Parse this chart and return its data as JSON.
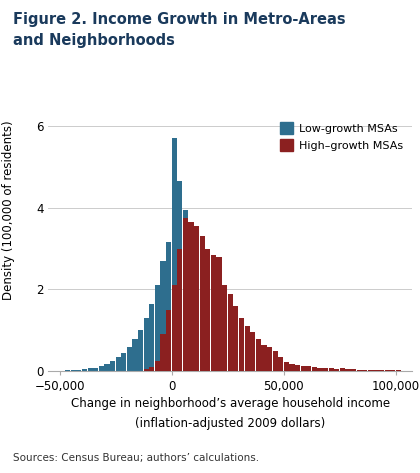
{
  "title_line1": "Figure 2. Income Growth in Metro-Areas",
  "title_line2": "and Neighborhoods",
  "ylabel": "Density (100,000 of residents)",
  "xlabel_line1": "Change in neighborhood’s average household income",
  "xlabel_line2": "(inflation-adjusted 2009 dollars)",
  "source": "Sources: Census Bureau; authors’ calculations.",
  "xlim": [
    -55000,
    107000
  ],
  "ylim": [
    0,
    6.3
  ],
  "yticks": [
    0,
    2,
    4,
    6
  ],
  "xticks": [
    -50000,
    0,
    50000,
    100000
  ],
  "xticklabels": [
    "−50,000",
    "0",
    "50,000",
    "100,000"
  ],
  "low_color": "#2E6E8E",
  "high_color": "#8B2020",
  "legend_low": "Low-growth MSAs",
  "legend_high": "High–growth MSAs",
  "bin_width": 2500,
  "low_growth_bars": [
    [
      -50000,
      0.01
    ],
    [
      -47500,
      0.02
    ],
    [
      -45000,
      0.03
    ],
    [
      -42500,
      0.04
    ],
    [
      -40000,
      0.05
    ],
    [
      -37500,
      0.07
    ],
    [
      -35000,
      0.09
    ],
    [
      -32500,
      0.13
    ],
    [
      -30000,
      0.18
    ],
    [
      -27500,
      0.25
    ],
    [
      -25000,
      0.35
    ],
    [
      -22500,
      0.45
    ],
    [
      -20000,
      0.6
    ],
    [
      -17500,
      0.78
    ],
    [
      -15000,
      1.0
    ],
    [
      -12500,
      1.3
    ],
    [
      -10000,
      1.65
    ],
    [
      -7500,
      2.1
    ],
    [
      -5000,
      2.7
    ],
    [
      -2500,
      3.15
    ],
    [
      0,
      5.7
    ],
    [
      2500,
      4.65
    ],
    [
      5000,
      3.95
    ],
    [
      7500,
      3.0
    ],
    [
      10000,
      1.3
    ],
    [
      12500,
      1.05
    ],
    [
      15000,
      0.75
    ],
    [
      17500,
      0.5
    ],
    [
      20000,
      0.32
    ],
    [
      22500,
      0.18
    ],
    [
      25000,
      0.1
    ],
    [
      27500,
      0.06
    ],
    [
      30000,
      0.04
    ],
    [
      32500,
      0.02
    ],
    [
      35000,
      0.01
    ]
  ],
  "high_growth_bars": [
    [
      -12500,
      0.05
    ],
    [
      -10000,
      0.1
    ],
    [
      -7500,
      0.25
    ],
    [
      -5000,
      0.9
    ],
    [
      -2500,
      1.5
    ],
    [
      0,
      2.1
    ],
    [
      2500,
      3.0
    ],
    [
      5000,
      3.75
    ],
    [
      7500,
      3.65
    ],
    [
      10000,
      3.55
    ],
    [
      12500,
      3.3
    ],
    [
      15000,
      3.0
    ],
    [
      17500,
      2.85
    ],
    [
      20000,
      2.8
    ],
    [
      22500,
      2.1
    ],
    [
      25000,
      1.9
    ],
    [
      27500,
      1.6
    ],
    [
      30000,
      1.3
    ],
    [
      32500,
      1.1
    ],
    [
      35000,
      0.95
    ],
    [
      37500,
      0.8
    ],
    [
      40000,
      0.65
    ],
    [
      42500,
      0.6
    ],
    [
      45000,
      0.5
    ],
    [
      47500,
      0.35
    ],
    [
      50000,
      0.22
    ],
    [
      52500,
      0.18
    ],
    [
      55000,
      0.15
    ],
    [
      57500,
      0.13
    ],
    [
      60000,
      0.12
    ],
    [
      62500,
      0.1
    ],
    [
      65000,
      0.09
    ],
    [
      67500,
      0.08
    ],
    [
      70000,
      0.07
    ],
    [
      72500,
      0.06
    ],
    [
      75000,
      0.08
    ],
    [
      77500,
      0.06
    ],
    [
      80000,
      0.05
    ],
    [
      82500,
      0.04
    ],
    [
      85000,
      0.04
    ],
    [
      87500,
      0.03
    ],
    [
      90000,
      0.04
    ],
    [
      92500,
      0.03
    ],
    [
      95000,
      0.03
    ],
    [
      97500,
      0.02
    ],
    [
      100000,
      0.02
    ],
    [
      102500,
      0.01
    ]
  ],
  "background_color": "#FFFFFF",
  "grid_color": "#CCCCCC",
  "title_color": "#1a3a5c",
  "title_fontsize": 10.5,
  "axis_label_fontsize": 8.5,
  "tick_fontsize": 8.5,
  "source_fontsize": 7.5
}
